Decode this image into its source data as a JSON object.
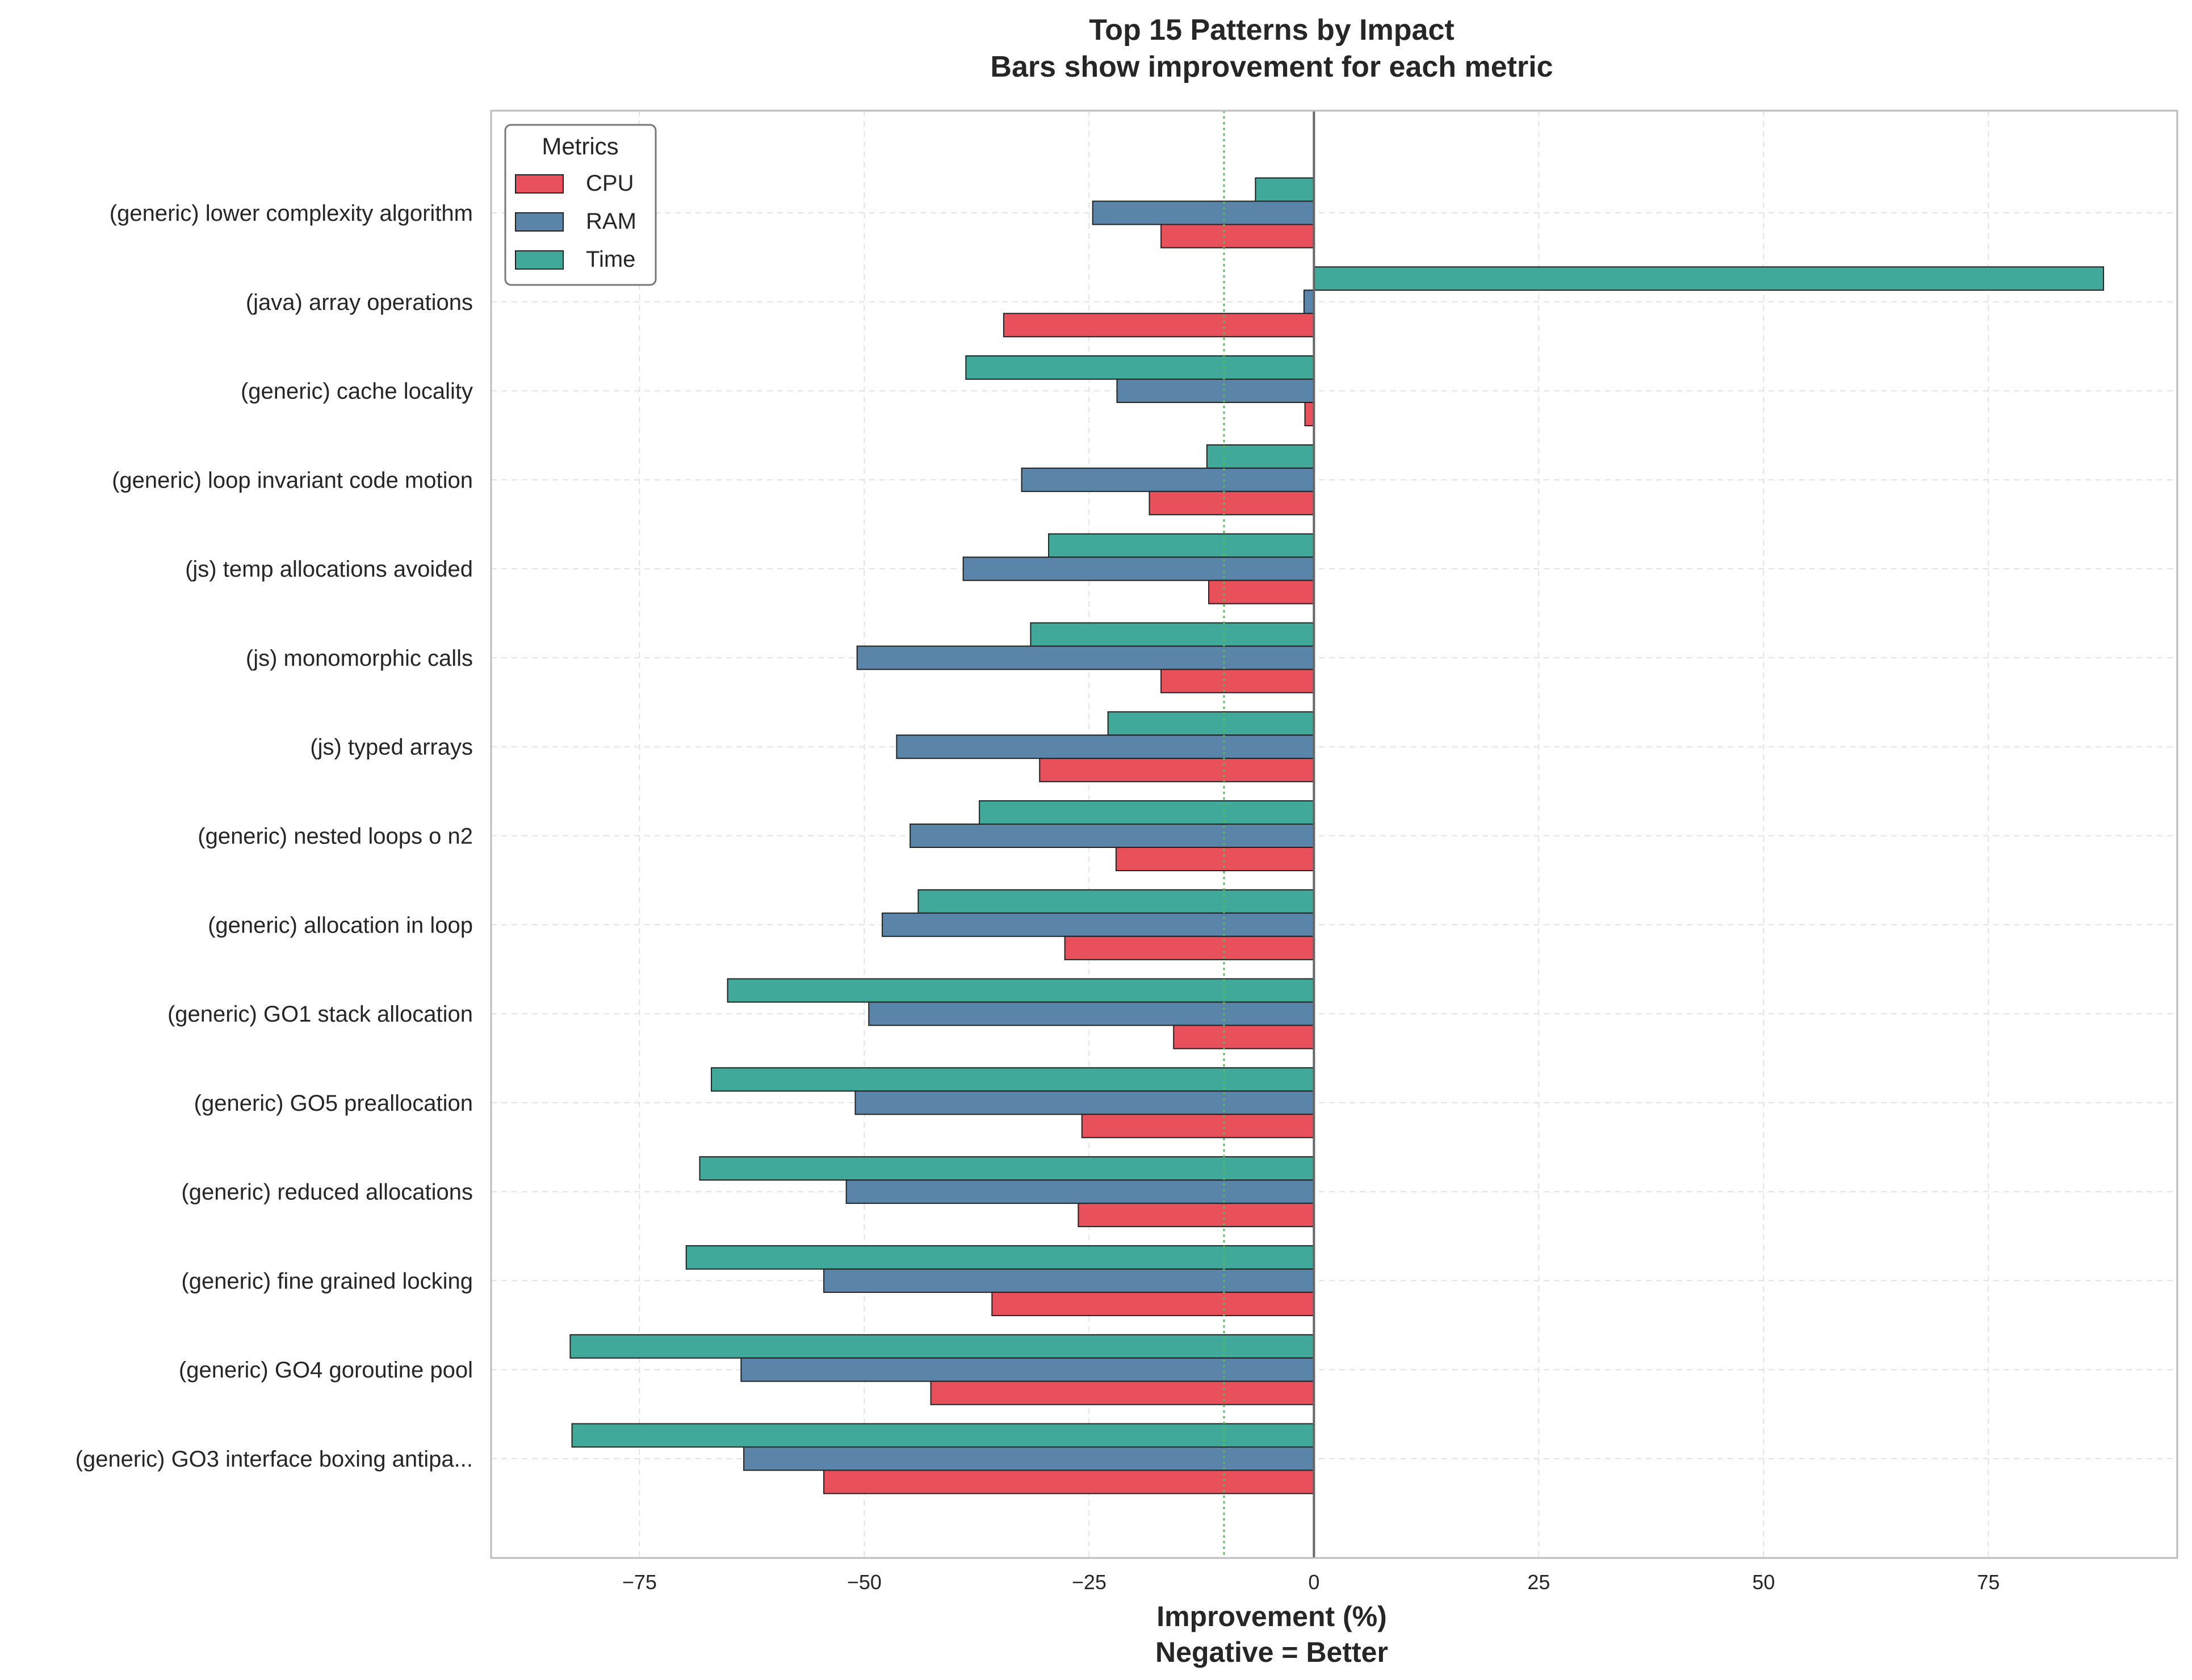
{
  "chart_data": {
    "type": "bar",
    "orientation": "horizontal",
    "title": "Top 15 Patterns by Impact",
    "subtitle": "Bars show improvement for each metric",
    "xlabel": "Improvement (%)",
    "xlabel_note": "Negative = Better",
    "ylabel": "",
    "xlim": [
      -91.5,
      96
    ],
    "xticks": [
      -75,
      -50,
      -25,
      0,
      25,
      50,
      75
    ],
    "xtick_labels": [
      "−75",
      "−50",
      "−25",
      "0",
      "25",
      "50",
      "75"
    ],
    "reference_line": -10,
    "grid": true,
    "legend": {
      "title": "Metrics",
      "position": "top-left"
    },
    "categories": [
      "(generic) lower complexity algorithm",
      "(java) array operations",
      "(generic) cache locality",
      "(generic) loop invariant code motion",
      "(js) temp allocations avoided",
      "(js) monomorphic calls",
      "(js) typed arrays",
      "(generic) nested loops o n2",
      "(generic) allocation in loop",
      "(generic) GO1 stack allocation",
      "(generic) GO5 preallocation",
      "(generic) reduced allocations",
      "(generic) fine grained locking",
      "(generic) GO4 goroutine pool",
      "(generic) GO3 interface boxing antipa..."
    ],
    "series": [
      {
        "name": "CPU",
        "color": "#e8505b",
        "values": [
          -17,
          -34.5,
          -1,
          -18.3,
          -11.7,
          -17,
          -30.5,
          -22,
          -27.7,
          -15.6,
          -25.8,
          -26.2,
          -35.8,
          -42.6,
          -54.5
        ]
      },
      {
        "name": "RAM",
        "color": "#5a85a9",
        "values": [
          -24.6,
          -1.1,
          -21.9,
          -32.5,
          -39,
          -50.8,
          -46.4,
          -44.9,
          -48,
          -49.5,
          -51,
          -52,
          -54.5,
          -63.7,
          -63.4
        ]
      },
      {
        "name": "Time",
        "color": "#41a99a",
        "values": [
          -6.5,
          87.8,
          -38.7,
          -11.9,
          -29.5,
          -31.5,
          -22.9,
          -37.2,
          -44,
          -65.2,
          -67,
          -68.3,
          -69.8,
          -82.7,
          -82.5
        ]
      }
    ]
  }
}
